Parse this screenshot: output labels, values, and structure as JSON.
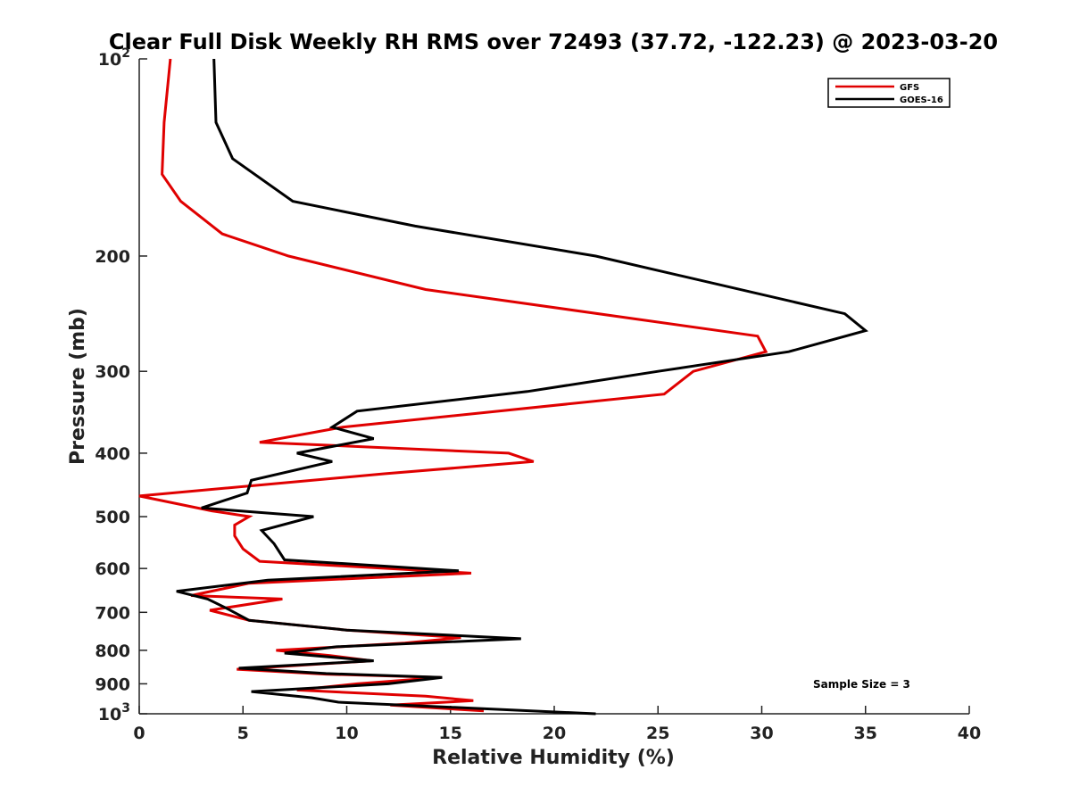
{
  "chart_data": {
    "type": "line",
    "title": "Clear Full Disk Weekly RH RMS over 72493 (37.72, -122.23) @ 2023-03-20",
    "xlabel": "Relative Humidity (%)",
    "ylabel": "Pressure (mb)",
    "xlim": [
      0,
      40
    ],
    "ylim": [
      100,
      1000
    ],
    "y_scale": "log",
    "y_reversed": true,
    "x_ticks": [
      "0",
      "5",
      "10",
      "15",
      "20",
      "25",
      "30",
      "35",
      "40"
    ],
    "y_ticks": [
      "10^2",
      "200",
      "300",
      "400",
      "500",
      "600",
      "700",
      "800",
      "900",
      "10^3"
    ],
    "y_tick_values": [
      100,
      200,
      300,
      400,
      500,
      600,
      700,
      800,
      900,
      1000
    ],
    "grid": false,
    "legend_position": "top-right",
    "annotation": "Sample Size = 3",
    "series": [
      {
        "name": "GFS",
        "color": "#e00000",
        "points": [
          [
            1.5,
            100
          ],
          [
            1.2,
            125
          ],
          [
            1.1,
            150
          ],
          [
            2.0,
            165
          ],
          [
            4.0,
            185
          ],
          [
            7.2,
            200
          ],
          [
            13.8,
            225
          ],
          [
            29.8,
            265
          ],
          [
            30.2,
            280
          ],
          [
            26.7,
            300
          ],
          [
            25.3,
            325
          ],
          [
            9.8,
            365
          ],
          [
            5.8,
            385
          ],
          [
            17.8,
            400
          ],
          [
            19.0,
            412
          ],
          [
            11.8,
            430
          ],
          [
            0.0,
            465
          ],
          [
            3.5,
            490
          ],
          [
            5.3,
            500
          ],
          [
            4.6,
            515
          ],
          [
            4.6,
            535
          ],
          [
            5.0,
            560
          ],
          [
            5.8,
            585
          ],
          [
            16.0,
            610
          ],
          [
            5.3,
            632
          ],
          [
            2.5,
            660
          ],
          [
            6.9,
            668
          ],
          [
            3.4,
            695
          ],
          [
            5.3,
            720
          ],
          [
            10.0,
            745
          ],
          [
            15.5,
            765
          ],
          [
            12.8,
            780
          ],
          [
            6.6,
            800
          ],
          [
            9.2,
            815
          ],
          [
            11.2,
            830
          ],
          [
            4.7,
            855
          ],
          [
            9.0,
            870
          ],
          [
            14.5,
            880
          ],
          [
            10.5,
            900
          ],
          [
            7.6,
            920
          ],
          [
            13.8,
            940
          ],
          [
            16.1,
            955
          ],
          [
            12.1,
            970
          ],
          [
            16.6,
            990
          ]
        ]
      },
      {
        "name": "GOES-16",
        "color": "#000000",
        "points": [
          [
            3.6,
            100
          ],
          [
            3.7,
            125
          ],
          [
            4.5,
            142
          ],
          [
            7.4,
            165
          ],
          [
            13.3,
            180
          ],
          [
            22.0,
            200
          ],
          [
            34.0,
            245
          ],
          [
            35.0,
            260
          ],
          [
            31.3,
            280
          ],
          [
            25.0,
            300
          ],
          [
            18.7,
            322
          ],
          [
            10.5,
            345
          ],
          [
            9.3,
            365
          ],
          [
            11.3,
            380
          ],
          [
            7.6,
            400
          ],
          [
            9.3,
            412
          ],
          [
            5.4,
            440
          ],
          [
            5.2,
            460
          ],
          [
            3.0,
            485
          ],
          [
            8.4,
            500
          ],
          [
            5.9,
            525
          ],
          [
            6.5,
            550
          ],
          [
            7.0,
            582
          ],
          [
            15.4,
            605
          ],
          [
            6.2,
            625
          ],
          [
            1.8,
            650
          ],
          [
            3.3,
            668
          ],
          [
            4.2,
            690
          ],
          [
            5.3,
            720
          ],
          [
            10.0,
            745
          ],
          [
            18.4,
            768
          ],
          [
            9.5,
            790
          ],
          [
            7.0,
            808
          ],
          [
            11.3,
            830
          ],
          [
            4.8,
            852
          ],
          [
            9.0,
            868
          ],
          [
            14.6,
            880
          ],
          [
            12.0,
            900
          ],
          [
            5.4,
            925
          ],
          [
            8.3,
            945
          ],
          [
            9.6,
            960
          ],
          [
            22.0,
            1000
          ]
        ]
      }
    ]
  }
}
